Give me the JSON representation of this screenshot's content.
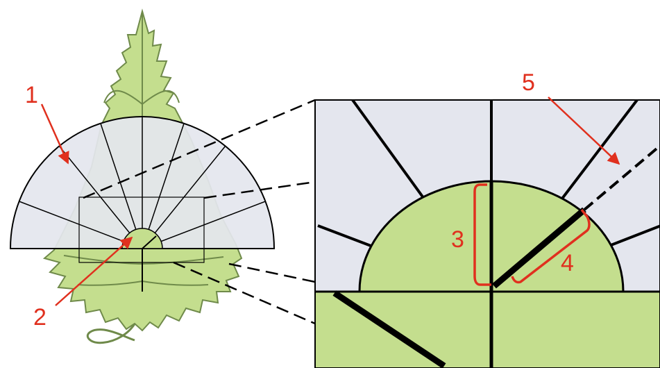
{
  "labels": {
    "l1": "1",
    "l2": "2",
    "l3": "3",
    "l4": "4",
    "l5": "5"
  },
  "colors": {
    "leaf": "#c4de8e",
    "leaf_stroke": "#6f8a4a",
    "protractor": "#e4e6ee",
    "line": "#000000",
    "annotation": "#e0301e"
  }
}
